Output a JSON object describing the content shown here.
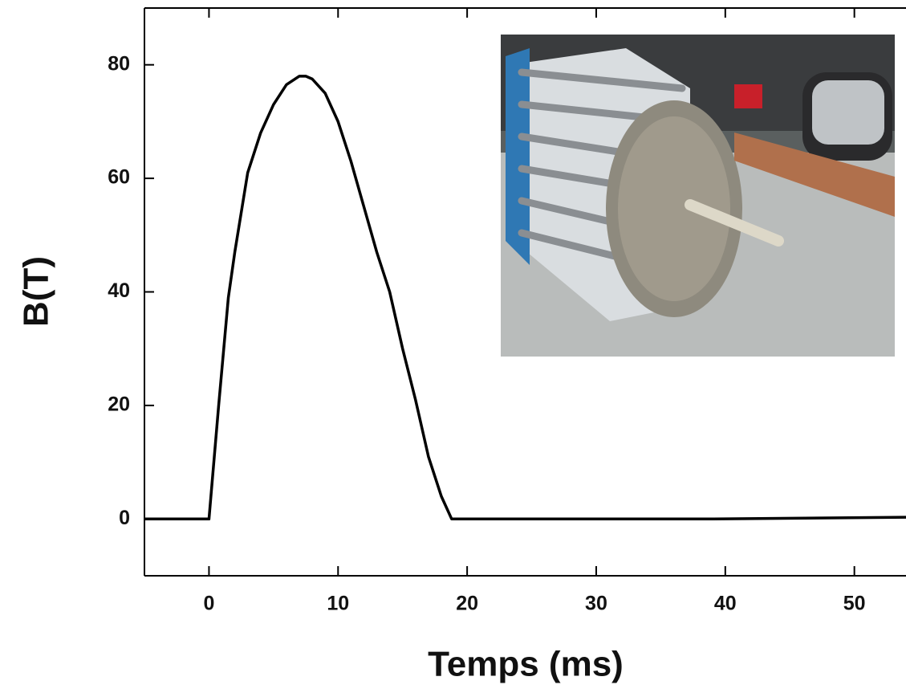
{
  "chart_data": {
    "type": "line",
    "xlabel": "Temps (ms)",
    "ylabel": "B(T)",
    "x": [
      -5,
      -0.3,
      0,
      0.75,
      1.5,
      2,
      3,
      4,
      5,
      6,
      7,
      7.5,
      8,
      9,
      10,
      11,
      12,
      13,
      14,
      15,
      16,
      17,
      18,
      18.8,
      30,
      39,
      54
    ],
    "series": [
      {
        "color": "#000000",
        "values": [
          0,
          0,
          0,
          20,
          39,
          47,
          61,
          68,
          73,
          76.5,
          78,
          78,
          77.5,
          75,
          70,
          63,
          55,
          47,
          40,
          30,
          21,
          11,
          4,
          0,
          0,
          0,
          0.3
        ]
      }
    ],
    "xlim": [
      -5,
      54
    ],
    "xticks": [
      0,
      10,
      20,
      30,
      40,
      50
    ],
    "ylim": [
      -10,
      90
    ],
    "yticks": [
      0,
      20,
      40,
      60,
      80
    ],
    "grid": false
  }
}
